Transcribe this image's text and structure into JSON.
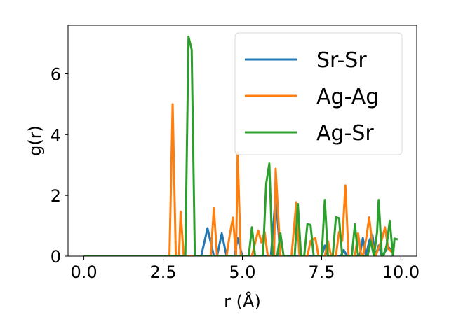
{
  "chart_data": {
    "type": "line",
    "xlabel": "r (Å)",
    "ylabel": "g(r)",
    "xlim": [
      -0.5,
      10.5
    ],
    "ylim": [
      0,
      7.6
    ],
    "xticks": [
      0.0,
      2.5,
      5.0,
      7.5,
      10.0
    ],
    "xtick_labels": [
      "0.0",
      "2.5",
      "5.0",
      "7.5",
      "10.0"
    ],
    "yticks": [
      0,
      2,
      4,
      6
    ],
    "ytick_labels": [
      "0",
      "2",
      "4",
      "6"
    ],
    "grid": false,
    "legend_position": "top-right",
    "series": [
      {
        "name": "Sr-Sr",
        "color": "#1f77b4",
        "points": [
          [
            0,
            0
          ],
          [
            3.7,
            0
          ],
          [
            3.9,
            0.92
          ],
          [
            4.1,
            0
          ],
          [
            4.2,
            0
          ],
          [
            4.35,
            0.75
          ],
          [
            4.5,
            0
          ],
          [
            4.75,
            0
          ],
          [
            4.85,
            0.6
          ],
          [
            5.0,
            0
          ],
          [
            5.9,
            0
          ],
          [
            6.05,
            2.0
          ],
          [
            6.2,
            0
          ],
          [
            7.5,
            0
          ],
          [
            7.6,
            0.35
          ],
          [
            7.7,
            0
          ],
          [
            8.1,
            0
          ],
          [
            8.2,
            0.2
          ],
          [
            8.3,
            0
          ],
          [
            8.7,
            0
          ],
          [
            8.8,
            0.6
          ],
          [
            8.9,
            0
          ],
          [
            9.0,
            0.5
          ],
          [
            9.1,
            0.7
          ],
          [
            9.2,
            0
          ],
          [
            9.3,
            0.35
          ],
          [
            9.4,
            0
          ],
          [
            9.5,
            0.15
          ],
          [
            9.6,
            0.3
          ],
          [
            9.7,
            0.2
          ]
        ]
      },
      {
        "name": "Ag-Ag",
        "color": "#ff7f0e",
        "points": [
          [
            0,
            0
          ],
          [
            2.7,
            0
          ],
          [
            2.8,
            5.0
          ],
          [
            2.9,
            0
          ],
          [
            3.0,
            0
          ],
          [
            3.05,
            1.47
          ],
          [
            3.15,
            0
          ],
          [
            4.0,
            0
          ],
          [
            4.1,
            1.58
          ],
          [
            4.2,
            0
          ],
          [
            4.5,
            0
          ],
          [
            4.6,
            0.7
          ],
          [
            4.7,
            1.27
          ],
          [
            4.8,
            0
          ],
          [
            4.85,
            3.4
          ],
          [
            4.95,
            0
          ],
          [
            5.3,
            0
          ],
          [
            5.5,
            0.85
          ],
          [
            5.6,
            0.45
          ],
          [
            5.7,
            0.8
          ],
          [
            5.8,
            0
          ],
          [
            6.0,
            0
          ],
          [
            6.05,
            2.88
          ],
          [
            6.2,
            0
          ],
          [
            6.55,
            0
          ],
          [
            6.7,
            1.78
          ],
          [
            6.8,
            0
          ],
          [
            7.05,
            0
          ],
          [
            7.15,
            0.5
          ],
          [
            7.3,
            0.6
          ],
          [
            7.4,
            0
          ],
          [
            7.6,
            0
          ],
          [
            7.7,
            0.5
          ],
          [
            7.8,
            0
          ],
          [
            7.95,
            0
          ],
          [
            8.05,
            0.8
          ],
          [
            8.15,
            0.5
          ],
          [
            8.25,
            2.33
          ],
          [
            8.35,
            0
          ],
          [
            8.55,
            0
          ],
          [
            8.65,
            0.75
          ],
          [
            8.75,
            0
          ],
          [
            8.8,
            0
          ],
          [
            8.9,
            0.55
          ],
          [
            9.0,
            1.28
          ],
          [
            9.1,
            0.4
          ],
          [
            9.2,
            0
          ],
          [
            9.4,
            0.55
          ],
          [
            9.5,
            0.95
          ],
          [
            9.6,
            0.25
          ],
          [
            9.7,
            0.15
          ],
          [
            9.8,
            0.35
          ]
        ]
      },
      {
        "name": "Ag-Sr",
        "color": "#2ca02c",
        "points": [
          [
            0,
            0
          ],
          [
            3.2,
            0
          ],
          [
            3.3,
            7.22
          ],
          [
            3.4,
            6.8
          ],
          [
            3.5,
            0
          ],
          [
            5.2,
            0
          ],
          [
            5.3,
            0.95
          ],
          [
            5.4,
            0
          ],
          [
            5.65,
            0
          ],
          [
            5.75,
            2.38
          ],
          [
            5.85,
            3.05
          ],
          [
            5.95,
            0
          ],
          [
            6.1,
            0
          ],
          [
            6.2,
            0.75
          ],
          [
            6.3,
            0
          ],
          [
            6.65,
            0
          ],
          [
            6.75,
            1.72
          ],
          [
            6.85,
            0
          ],
          [
            6.95,
            0
          ],
          [
            7.05,
            1.05
          ],
          [
            7.15,
            1.03
          ],
          [
            7.25,
            0
          ],
          [
            7.5,
            0
          ],
          [
            7.6,
            1.85
          ],
          [
            7.7,
            0
          ],
          [
            7.85,
            0
          ],
          [
            7.95,
            1.28
          ],
          [
            8.05,
            1.25
          ],
          [
            8.15,
            0
          ],
          [
            8.45,
            0
          ],
          [
            8.55,
            1.05
          ],
          [
            8.65,
            0
          ],
          [
            8.95,
            0
          ],
          [
            9.05,
            0.5
          ],
          [
            9.15,
            0
          ],
          [
            9.25,
            0.8
          ],
          [
            9.3,
            1.85
          ],
          [
            9.4,
            0
          ],
          [
            9.45,
            0
          ],
          [
            9.55,
            0.35
          ],
          [
            9.65,
            1.17
          ],
          [
            9.75,
            0
          ],
          [
            9.8,
            0.58
          ],
          [
            9.9,
            0.55
          ]
        ]
      }
    ]
  }
}
